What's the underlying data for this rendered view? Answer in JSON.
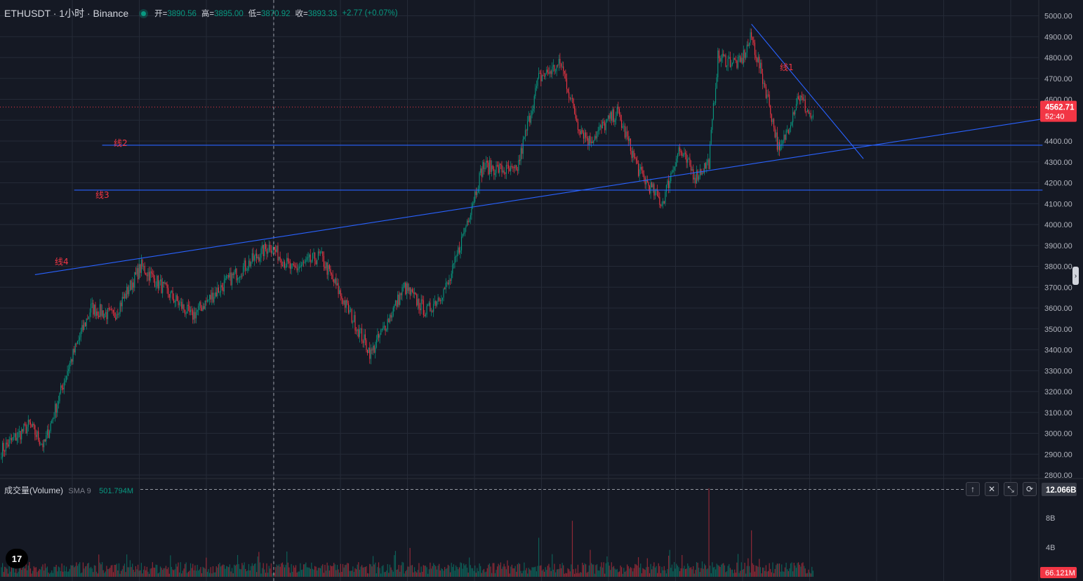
{
  "header": {
    "symbol": "ETHUSDT · 1小时 · Binance",
    "open_label": "开=",
    "open": "3890.56",
    "high_label": "高=",
    "high": "3895.00",
    "low_label": "低=",
    "low": "3870.92",
    "close_label": "收=",
    "close": "3893.33",
    "change": "+2.77 (+0.07%)"
  },
  "price_axis": {
    "ticks": [
      "5000.00",
      "4900.00",
      "4800.00",
      "4700.00",
      "4600.00",
      "4400.00",
      "4300.00",
      "4200.00",
      "4100.00",
      "4000.00",
      "3900.00",
      "3800.00",
      "3700.00",
      "3600.00",
      "3500.00",
      "3400.00",
      "3300.00",
      "3200.00",
      "3100.00",
      "3000.00",
      "2900.00",
      "2800.00"
    ],
    "last_price": "4562.71",
    "countdown": "52:40"
  },
  "volume_pane": {
    "title": "成交量(Volume)",
    "sma_label": "SMA 9",
    "sma_value": "501.794M",
    "axis_ticks": [
      "8B",
      "4B"
    ],
    "top_label": "12.066B",
    "last_volume": "66.121M"
  },
  "drawings": [
    {
      "label": "线1"
    },
    {
      "label": "线2"
    },
    {
      "label": "线3"
    },
    {
      "label": "线4"
    }
  ],
  "controls": {
    "up": "↑",
    "close": "✕",
    "collapse": "⤡",
    "refresh": "⟳"
  },
  "logo": "17",
  "colors": {
    "background": "#151924",
    "grid": "#252a37",
    "up": "#089981",
    "down": "#f23645",
    "drawing": "#2962ff",
    "drawing_label": "#f23645"
  },
  "chart_data": {
    "type": "candlestick",
    "timeframe": "1h",
    "ylim": [
      2800,
      5000
    ],
    "waypoints": [
      {
        "bar": 0,
        "price": 2920
      },
      {
        "bar": 25,
        "price": 3040
      },
      {
        "bar": 38,
        "price": 2940
      },
      {
        "bar": 60,
        "price": 3320
      },
      {
        "bar": 80,
        "price": 3600
      },
      {
        "bar": 100,
        "price": 3560
      },
      {
        "bar": 125,
        "price": 3800
      },
      {
        "bar": 170,
        "price": 3560
      },
      {
        "bar": 200,
        "price": 3720
      },
      {
        "bar": 240,
        "price": 3900
      },
      {
        "bar": 260,
        "price": 3780
      },
      {
        "bar": 285,
        "price": 3850
      },
      {
        "bar": 330,
        "price": 3380
      },
      {
        "bar": 360,
        "price": 3700
      },
      {
        "bar": 380,
        "price": 3580
      },
      {
        "bar": 400,
        "price": 3720
      },
      {
        "bar": 430,
        "price": 4280
      },
      {
        "bar": 460,
        "price": 4250
      },
      {
        "bar": 480,
        "price": 4700
      },
      {
        "bar": 500,
        "price": 4770
      },
      {
        "bar": 515,
        "price": 4480
      },
      {
        "bar": 525,
        "price": 4400
      },
      {
        "bar": 550,
        "price": 4540
      },
      {
        "bar": 570,
        "price": 4250
      },
      {
        "bar": 590,
        "price": 4100
      },
      {
        "bar": 605,
        "price": 4360
      },
      {
        "bar": 620,
        "price": 4230
      },
      {
        "bar": 632,
        "price": 4300
      },
      {
        "bar": 640,
        "price": 4800
      },
      {
        "bar": 660,
        "price": 4770
      },
      {
        "bar": 670,
        "price": 4900
      },
      {
        "bar": 685,
        "price": 4600
      },
      {
        "bar": 695,
        "price": 4340
      },
      {
        "bar": 712,
        "price": 4620
      },
      {
        "bar": 725,
        "price": 4500
      }
    ],
    "bar_count": 726,
    "volume_spikes": [
      {
        "bar": 632,
        "volume_b": 12.0
      },
      {
        "bar": 510,
        "volume_b": 7.6
      },
      {
        "bar": 670,
        "volume_b": 6.3
      },
      {
        "bar": 480,
        "volume_b": 5.3
      }
    ],
    "trendlines": [
      {
        "label": "线1",
        "from": {
          "bar": 670,
          "price": 4960
        },
        "to": {
          "bar": 770,
          "price": 4315
        }
      },
      {
        "label": "线2",
        "from": {
          "bar": 90,
          "price": 4380
        },
        "to": {
          "bar": 930,
          "price": 4380
        }
      },
      {
        "label": "线3",
        "from": {
          "bar": 65,
          "price": 4165
        },
        "to": {
          "bar": 930,
          "price": 4165
        }
      },
      {
        "label": "线4",
        "from": {
          "bar": 30,
          "price": 3760
        },
        "to": {
          "bar": 935,
          "price": 4510
        }
      }
    ],
    "current_price_line": 4562.71
  }
}
